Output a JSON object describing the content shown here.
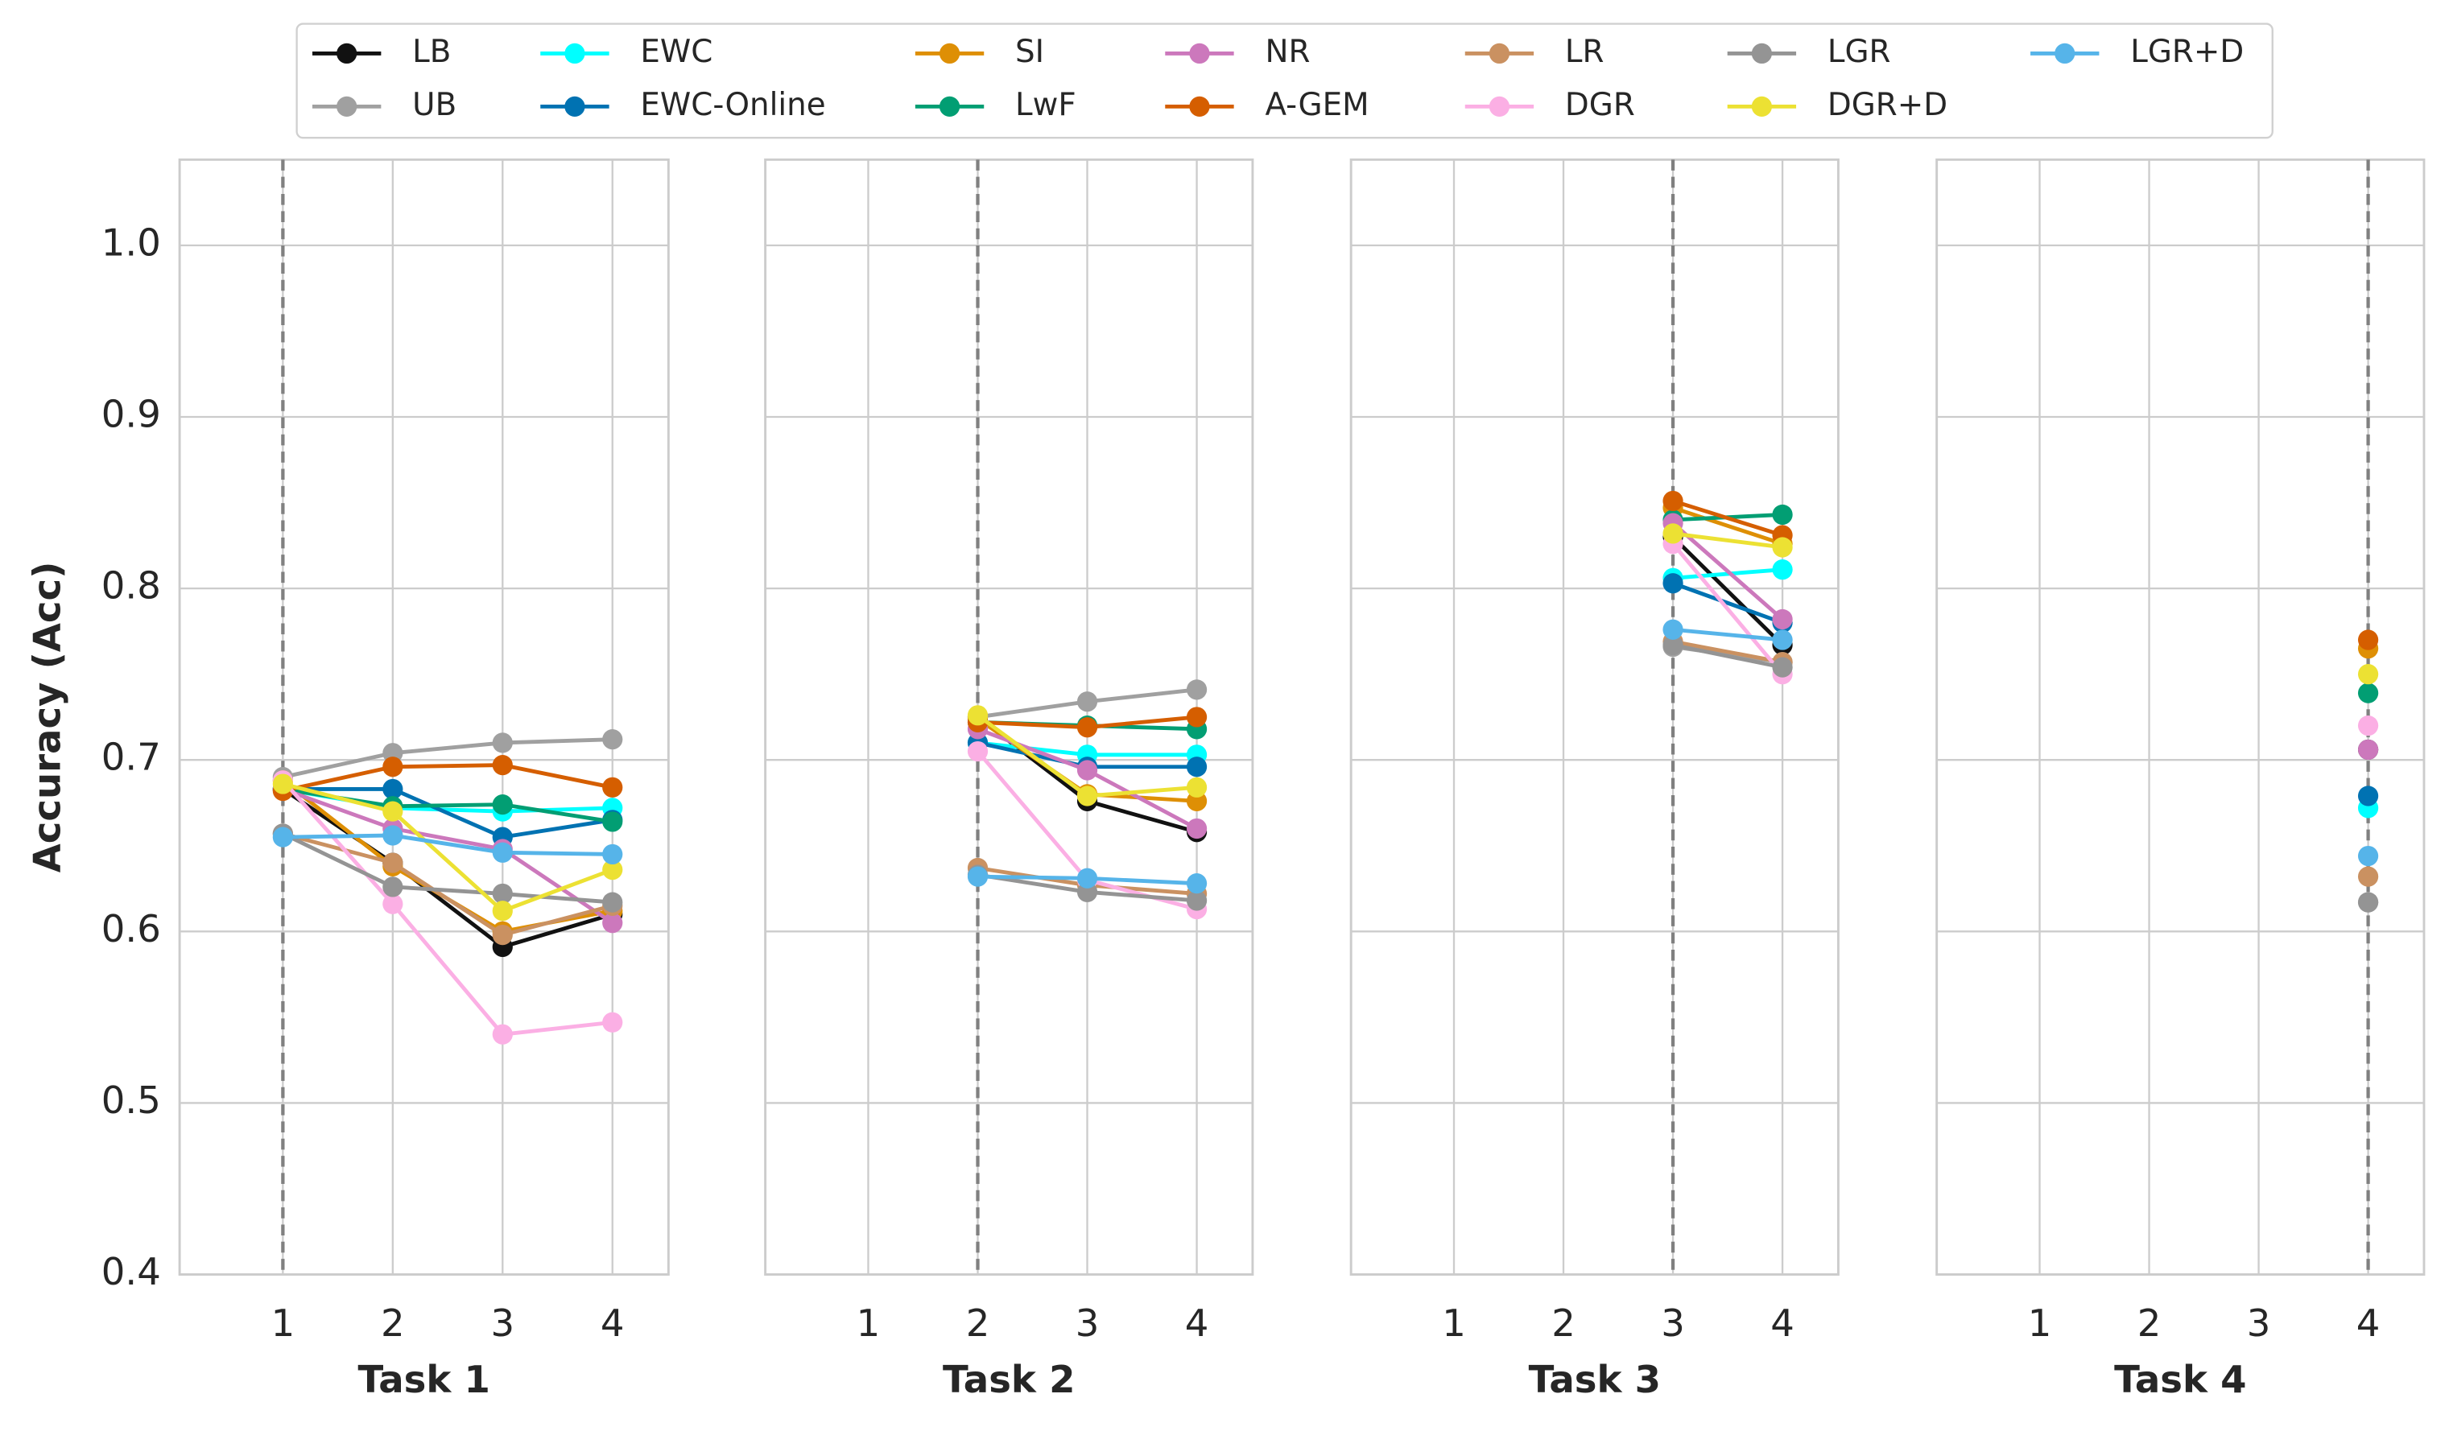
{
  "chart_data": {
    "type": "line",
    "ylabel": "Accuracy (Acc)",
    "ylim": [
      0.4,
      1.05
    ],
    "yticks": [
      0.4,
      0.5,
      0.6,
      0.7,
      0.8,
      0.9,
      {
        "value": 1,
        "label": "1.0"
      }
    ],
    "xlim": [
      0.06,
      4.51
    ],
    "xticks": [
      1,
      2,
      3,
      4
    ],
    "grid": true,
    "xlabels": [
      "Task 1",
      "Task 2",
      "Task 3",
      "Task 4"
    ],
    "task_lines": [
      1,
      2,
      3,
      4
    ],
    "series": [
      {
        "name": "LB",
        "color": "#111111",
        "values": [
          [
            0.683,
            0.64,
            0.591,
            0.61
          ],
          [
            null,
            0.725,
            0.676,
            0.658
          ],
          [
            null,
            null,
            0.83,
            0.767
          ],
          [
            null,
            null,
            null,
            0.706
          ]
        ]
      },
      {
        "name": "UB",
        "color": "#a0a0a0",
        "values": [
          [
            0.69,
            0.704,
            0.71,
            0.712
          ],
          [
            null,
            0.725,
            0.734,
            0.741
          ],
          [
            null,
            null,
            0.766,
            0.757
          ],
          [
            null,
            null,
            null,
            0.617
          ]
        ]
      },
      {
        "name": "EWC",
        "color": "#00ffff",
        "values": [
          [
            0.683,
            0.672,
            0.67,
            0.672
          ],
          [
            null,
            0.71,
            0.703,
            0.703
          ],
          [
            null,
            null,
            0.806,
            0.811
          ],
          [
            null,
            null,
            null,
            0.672
          ]
        ]
      },
      {
        "name": "EWC-Online",
        "color": "#0072b2",
        "values": [
          [
            0.683,
            0.683,
            0.655,
            0.665
          ],
          [
            null,
            0.71,
            0.696,
            0.696
          ],
          [
            null,
            null,
            0.803,
            0.78
          ],
          [
            null,
            null,
            null,
            0.679
          ]
        ]
      },
      {
        "name": "SI",
        "color": "#de8f05",
        "values": [
          [
            0.688,
            0.638,
            0.6,
            0.612
          ],
          [
            null,
            0.724,
            0.68,
            0.676
          ],
          [
            null,
            null,
            0.847,
            0.826
          ],
          [
            null,
            null,
            null,
            0.765
          ]
        ]
      },
      {
        "name": "LwF",
        "color": "#029e73",
        "values": [
          [
            0.683,
            0.673,
            0.674,
            0.664
          ],
          [
            null,
            0.722,
            0.72,
            0.718
          ],
          [
            null,
            null,
            0.84,
            0.843
          ],
          [
            null,
            null,
            null,
            0.739
          ]
        ]
      },
      {
        "name": "NR",
        "color": "#cc78bc",
        "values": [
          [
            0.683,
            0.66,
            0.648,
            0.605
          ],
          [
            null,
            0.718,
            0.694,
            0.66
          ],
          [
            null,
            null,
            0.838,
            0.782
          ],
          [
            null,
            null,
            null,
            0.706
          ]
        ]
      },
      {
        "name": "A-GEM",
        "color": "#d55e00",
        "values": [
          [
            0.682,
            0.696,
            0.697,
            0.684
          ],
          [
            null,
            0.722,
            0.719,
            0.725
          ],
          [
            null,
            null,
            0.851,
            0.831
          ],
          [
            null,
            null,
            null,
            0.77
          ]
        ]
      },
      {
        "name": "LR",
        "color": "#ca9161",
        "values": [
          [
            0.657,
            0.64,
            0.598,
            0.615
          ],
          [
            null,
            0.637,
            0.627,
            0.622
          ],
          [
            null,
            null,
            0.769,
            0.757
          ],
          [
            null,
            null,
            null,
            0.632
          ]
        ]
      },
      {
        "name": "DGR",
        "color": "#fbafe4",
        "values": [
          [
            0.688,
            0.616,
            0.54,
            0.547
          ],
          [
            null,
            0.705,
            0.63,
            0.613
          ],
          [
            null,
            null,
            0.826,
            0.75
          ],
          [
            null,
            null,
            null,
            0.72
          ]
        ]
      },
      {
        "name": "LGR",
        "color": "#949494",
        "values": [
          [
            0.657,
            0.626,
            0.622,
            0.617
          ],
          [
            null,
            0.633,
            0.623,
            0.618
          ],
          [
            null,
            null,
            0.767,
            0.754
          ],
          [
            null,
            null,
            null,
            0.617
          ]
        ]
      },
      {
        "name": "DGR+D",
        "color": "#ece133",
        "values": [
          [
            0.686,
            0.67,
            0.612,
            0.636
          ],
          [
            null,
            0.726,
            0.679,
            0.684
          ],
          [
            null,
            null,
            0.832,
            0.824
          ],
          [
            null,
            null,
            null,
            0.75
          ]
        ]
      },
      {
        "name": "LGR+D",
        "color": "#56b4e9",
        "values": [
          [
            0.655,
            0.656,
            0.646,
            0.645
          ],
          [
            null,
            0.632,
            0.631,
            0.628
          ],
          [
            null,
            null,
            0.776,
            0.77
          ],
          [
            null,
            null,
            null,
            0.644
          ]
        ]
      }
    ]
  }
}
